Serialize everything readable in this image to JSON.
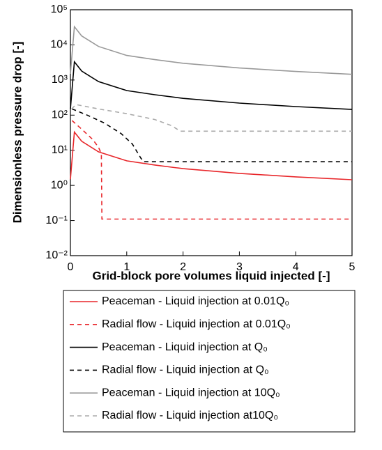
{
  "chart_data": {
    "type": "line",
    "x_label": "Grid-block pore volumes liquid injected [-]",
    "y_label": "Dimensionless pressure drop [-]",
    "xlim": [
      0,
      5
    ],
    "xticks": [
      0,
      1,
      2,
      3,
      4,
      5
    ],
    "ylim": [
      0.01,
      100000
    ],
    "yticks": [
      {
        "value": 0.01,
        "label": "10⁻²"
      },
      {
        "value": 0.1,
        "label": "10⁻¹"
      },
      {
        "value": 1,
        "label": "10⁰"
      },
      {
        "value": 10,
        "label": "10¹"
      },
      {
        "value": 100,
        "label": "10²"
      },
      {
        "value": 1000,
        "label": "10³"
      },
      {
        "value": 10000,
        "label": "10⁴"
      },
      {
        "value": 100000,
        "label": "10⁵"
      }
    ],
    "y_scale": "log",
    "legend_position": "bottom",
    "series": [
      {
        "name": "Peaceman - Liquid injection at 0.01Q₀",
        "color": "#e8262a",
        "style": "solid",
        "x": [
          0,
          0.07,
          0.2,
          0.5,
          1,
          1.5,
          2,
          3,
          4,
          5
        ],
        "values": [
          1.5,
          33,
          18,
          9,
          5,
          3.8,
          3,
          2.2,
          1.75,
          1.45
        ]
      },
      {
        "name": "Radial flow - Liquid injection at 0.01Q₀",
        "color": "#e8262a",
        "style": "dashed",
        "x": [
          0.03,
          0.2,
          0.4,
          0.5,
          0.55,
          0.56,
          5
        ],
        "values": [
          70,
          40,
          20,
          12,
          8,
          0.11,
          0.11
        ]
      },
      {
        "name": "Peaceman - Liquid injection at Q₀",
        "color": "#000000",
        "style": "solid",
        "x": [
          0,
          0.07,
          0.2,
          0.5,
          1,
          1.5,
          2,
          3,
          4,
          5
        ],
        "values": [
          150,
          3300,
          1800,
          900,
          500,
          380,
          300,
          220,
          175,
          145
        ]
      },
      {
        "name": "Radial flow - Liquid injection at Q₀",
        "color": "#000000",
        "style": "dashed",
        "x": [
          0.03,
          0.3,
          0.6,
          0.9,
          1.1,
          1.25,
          1.3,
          5
        ],
        "values": [
          150,
          100,
          60,
          30,
          15,
          6,
          4.7,
          4.7
        ]
      },
      {
        "name": "Peaceman - Liquid injection at 10Q₀",
        "color": "#999999",
        "style": "solid",
        "x": [
          0,
          0.07,
          0.2,
          0.5,
          1,
          1.5,
          2,
          3,
          4,
          5
        ],
        "values": [
          1500,
          33000,
          18000,
          9000,
          5000,
          3800,
          3000,
          2200,
          1750,
          1450
        ]
      },
      {
        "name": "Radial flow - Liquid injection at10Q₀",
        "color": "#aaaaaa",
        "style": "dashed",
        "x": [
          0.02,
          0.1,
          0.5,
          1,
          1.5,
          1.8,
          1.95,
          5
        ],
        "values": [
          150,
          200,
          150,
          110,
          75,
          50,
          35,
          35
        ]
      }
    ]
  }
}
